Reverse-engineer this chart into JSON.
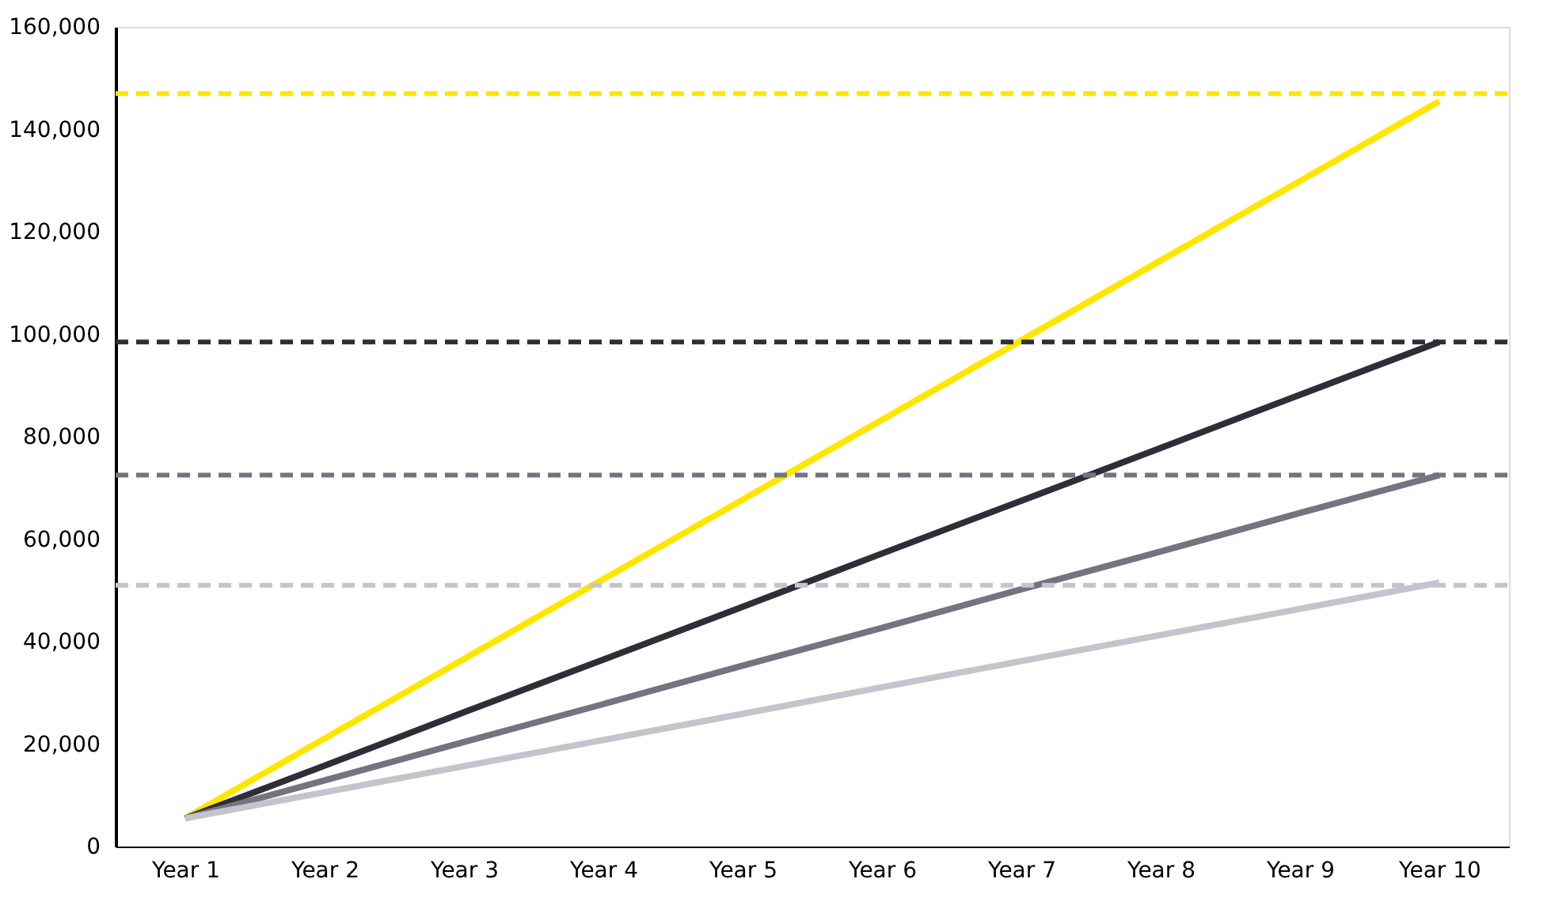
{
  "chart_data": {
    "type": "line",
    "categories": [
      "Year 1",
      "Year 2",
      "Year 3",
      "Year 4",
      "Year 5",
      "Year 6",
      "Year 7",
      "Year 8",
      "Year 9",
      "Year 10"
    ],
    "series": [
      {
        "color": "#ffe600",
        "values": [
          5500,
          21100,
          36600,
          52200,
          67700,
          83300,
          98800,
          114400,
          129900,
          145500
        ]
      },
      {
        "color": "#2e2e38",
        "values": [
          5500,
          15800,
          26200,
          36500,
          46800,
          57200,
          67500,
          77800,
          88200,
          98500
        ]
      },
      {
        "color": "#747480",
        "values": [
          5500,
          12900,
          20400,
          27800,
          35300,
          42700,
          50200,
          57600,
          65100,
          72500
        ]
      },
      {
        "color": "#c4c4cd",
        "values": [
          5500,
          10600,
          15700,
          20800,
          25900,
          31100,
          36200,
          41300,
          46400,
          51500
        ]
      }
    ],
    "ref_lines": [
      {
        "axis": "y",
        "value": 147000,
        "color": "#ffe600",
        "line_style": "dashed"
      },
      {
        "axis": "y",
        "value": 98500,
        "color": "#2e2e38",
        "line_style": "dashed"
      },
      {
        "axis": "y",
        "value": 72500,
        "color": "#747480",
        "line_style": "dashed"
      },
      {
        "axis": "y",
        "value": 51000,
        "color": "#c4c4cd",
        "line_style": "dashed"
      }
    ],
    "ylim": [
      0,
      160000
    ],
    "yticks": [
      0,
      {
        "value": 20000,
        "label": "20,000"
      },
      {
        "value": 40000,
        "label": "40,000"
      },
      {
        "value": 60000,
        "label": "60,000"
      },
      {
        "value": 80000,
        "label": "80,000"
      },
      {
        "value": 100000,
        "label": "100,000"
      },
      {
        "value": 120000,
        "label": "120,000"
      },
      {
        "value": 140000,
        "label": "140,000"
      },
      {
        "value": 160000,
        "label": "160,000"
      }
    ],
    "grid": false,
    "marker": "none",
    "line_style": "solid"
  }
}
